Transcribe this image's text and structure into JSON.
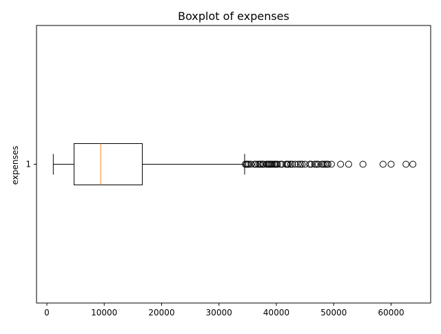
{
  "chart_data": {
    "type": "boxplot",
    "title": "Boxplot of expenses",
    "xlabel": "",
    "ylabel": "expenses",
    "orientation": "horizontal",
    "categories": [
      "1"
    ],
    "xlim": [
      -1800,
      66900
    ],
    "x_ticks": [
      0,
      10000,
      20000,
      30000,
      40000,
      50000,
      60000
    ],
    "x_tick_labels": [
      "0",
      "10000",
      "20000",
      "30000",
      "40000",
      "50000",
      "60000"
    ],
    "grid": false,
    "series": [
      {
        "whisker_low": 1122,
        "q1": 4740,
        "median": 9382,
        "q3": 16640,
        "whisker_high": 34472,
        "outliers": [
          34600,
          34800,
          35000,
          35200,
          35600,
          36200,
          36400,
          36800,
          37100,
          37300,
          37600,
          37800,
          38300,
          38500,
          38700,
          38900,
          39100,
          39300,
          39600,
          39800,
          40000,
          40200,
          40700,
          41000,
          41700,
          41900,
          42100,
          42500,
          42800,
          43300,
          43800,
          44200,
          44500,
          45000,
          45800,
          46100,
          46700,
          47000,
          47300,
          47900,
          48200,
          48500,
          48800,
          49000,
          49600,
          51200,
          52600,
          55100,
          58600,
          60000,
          62600,
          63800
        ]
      }
    ],
    "colors": {
      "box": "#000000",
      "median": "#ff7f0e",
      "outlier": "#000000"
    }
  }
}
